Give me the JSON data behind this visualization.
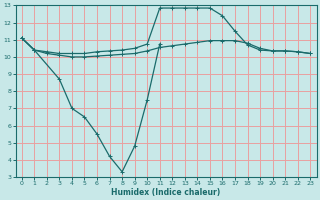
{
  "xlabel": "Humidex (Indice chaleur)",
  "bg_color": "#c8e8e8",
  "line_color": "#1a6b6b",
  "grid_color": "#e8a0a0",
  "xlim": [
    -0.5,
    23.5
  ],
  "ylim": [
    3,
    13
  ],
  "yticks": [
    3,
    4,
    5,
    6,
    7,
    8,
    9,
    10,
    11,
    12,
    13
  ],
  "xticks": [
    0,
    1,
    2,
    3,
    4,
    5,
    6,
    7,
    8,
    9,
    10,
    11,
    12,
    13,
    14,
    15,
    16,
    17,
    18,
    19,
    20,
    21,
    22,
    23
  ],
  "line_top_x": [
    0,
    1,
    2,
    3,
    4,
    5,
    6,
    7,
    8,
    9,
    10,
    11,
    12,
    13,
    14,
    15,
    16,
    17,
    18,
    19,
    20,
    21,
    22,
    23
  ],
  "line_top_y": [
    11.1,
    10.4,
    10.3,
    10.2,
    10.2,
    10.2,
    10.3,
    10.35,
    10.4,
    10.5,
    10.75,
    12.85,
    12.85,
    12.85,
    12.85,
    12.85,
    12.4,
    11.5,
    10.7,
    10.4,
    10.35,
    10.35,
    10.3,
    10.2
  ],
  "line_mid_x": [
    0,
    1,
    2,
    3,
    4,
    5,
    6,
    7,
    8,
    9,
    10,
    11,
    12,
    13,
    14,
    15,
    16,
    17,
    18,
    19,
    20,
    21,
    22,
    23
  ],
  "line_mid_y": [
    11.1,
    10.4,
    10.2,
    10.1,
    10.0,
    10.0,
    10.05,
    10.1,
    10.15,
    10.2,
    10.35,
    10.55,
    10.65,
    10.75,
    10.85,
    10.95,
    10.95,
    10.95,
    10.8,
    10.5,
    10.35,
    10.35,
    10.3,
    10.2
  ],
  "line_dip_x": [
    0,
    1,
    3,
    4,
    5,
    6,
    7,
    8,
    9,
    10,
    11
  ],
  "line_dip_y": [
    11.1,
    10.4,
    8.7,
    7.0,
    6.5,
    5.5,
    4.2,
    3.3,
    4.8,
    7.5,
    10.75
  ]
}
